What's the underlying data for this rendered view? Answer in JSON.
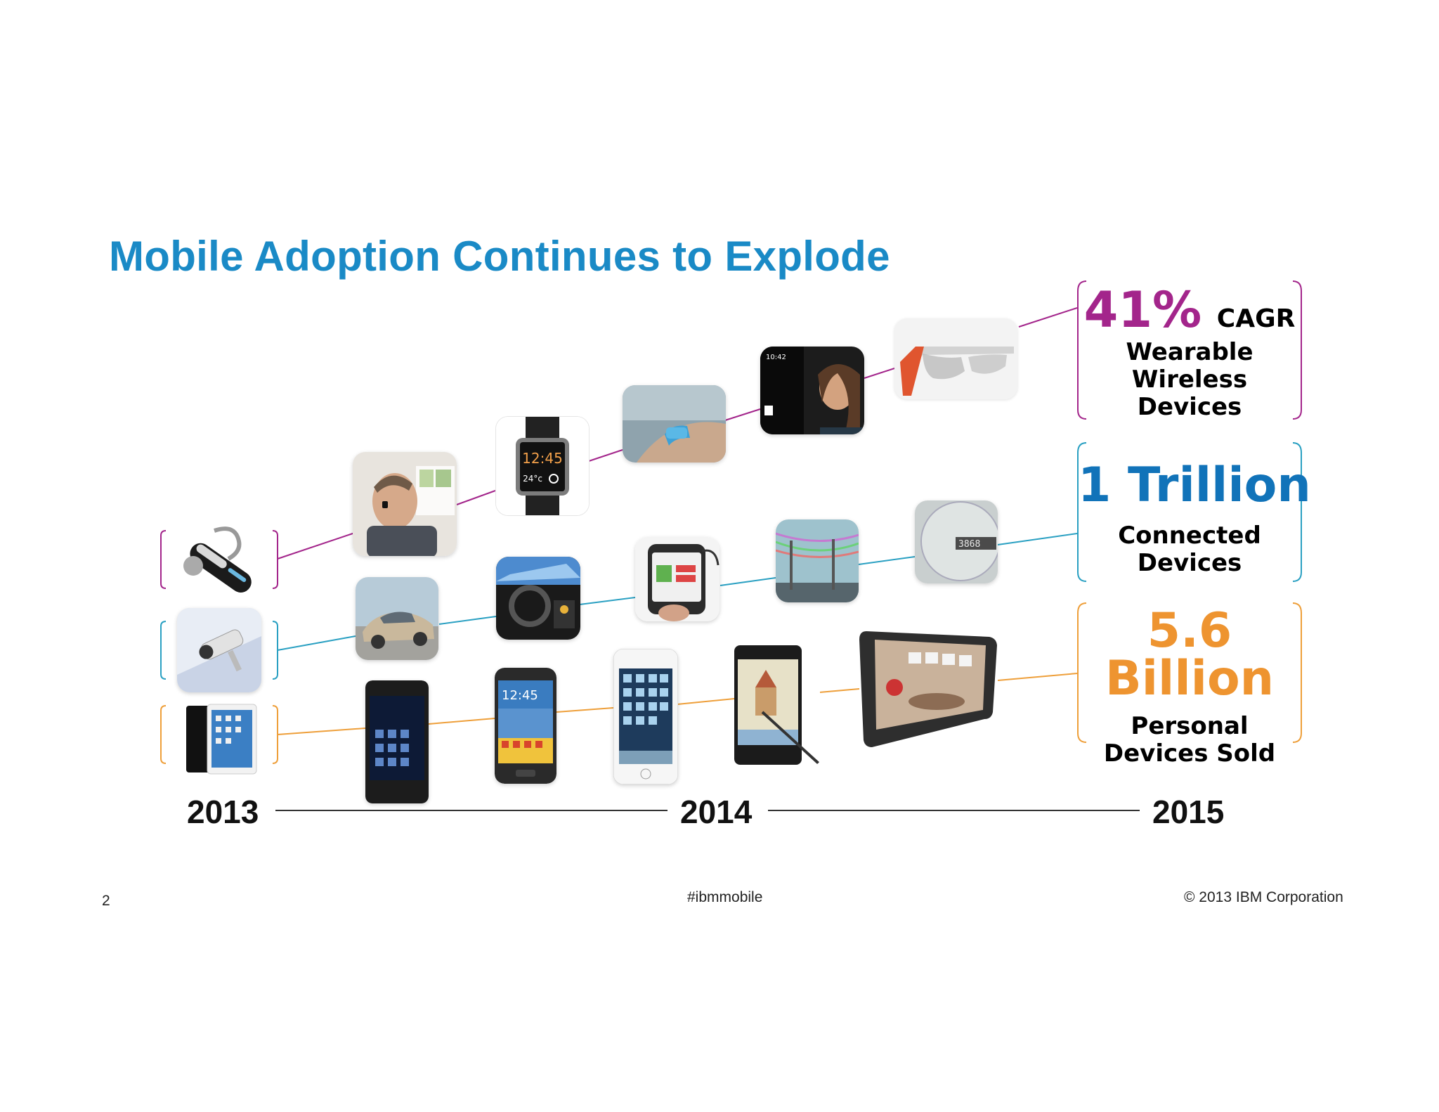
{
  "slide": {
    "title": "Mobile Adoption Continues to Explode",
    "title_color": "#1a8ac6"
  },
  "stats": {
    "wearable": {
      "value": "41%",
      "suffix": "CAGR",
      "desc1": "Wearable",
      "desc2": "Wireless",
      "desc3": "Devices",
      "color": "#a3258b"
    },
    "connected": {
      "value": "1 Trillion",
      "desc1": "Connected",
      "desc2": "Devices",
      "color": "#1173b9"
    },
    "personal": {
      "value1": "5.6",
      "value2": "Billion",
      "desc1": "Personal",
      "desc2": "Devices Sold",
      "color": "#ee9430"
    }
  },
  "timeline": {
    "years": [
      "2013",
      "2014",
      "2015"
    ]
  },
  "footer": {
    "page_number": "2",
    "hashtag": "#ibmmobile",
    "copyright": "© 2013 IBM Corporation"
  },
  "devices": {
    "watch_time": "12:45",
    "watch_temp": "24°c",
    "glass_time": "10:42"
  },
  "line_colors": {
    "wearable": "#a3258b",
    "connected": "#2aa0c2",
    "personal": "#ee9f3a",
    "axis": "#333333"
  }
}
